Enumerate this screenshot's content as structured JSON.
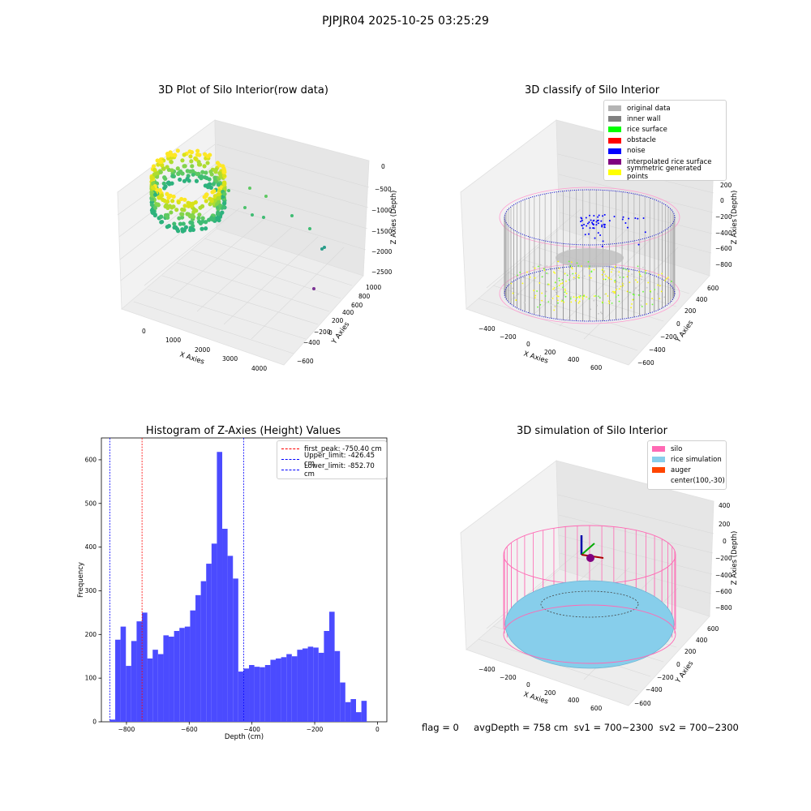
{
  "figure": {
    "suptitle": "PJPJR04 2025-10-25 03:25:29",
    "status_line": "flag = 0     avgDepth = 758 cm  sv1 = 700~2300  sv2 = 700~2300"
  },
  "chart_data": [
    {
      "type": "scatter",
      "title": "3D Plot of Silo Interior(row data)",
      "xlabel": "X Axies",
      "ylabel": "Y Axies",
      "zlabel": "Z Axies (Depth)",
      "x_ticks": [
        "0",
        "1000",
        "2000",
        "3000",
        "4000"
      ],
      "y_ticks": [
        "−600",
        "−400",
        "−200",
        "0",
        "200",
        "400",
        "600",
        "800",
        "1000"
      ],
      "z_ticks": [
        "0",
        "−500",
        "−1000",
        "−1500",
        "−2000",
        "−2500"
      ],
      "colormap": "viridis",
      "points_description_values": {
        "dense_ring": {
          "x_range": [
            -400,
            800
          ],
          "y_range": [
            -600,
            700
          ],
          "z_range": [
            -900,
            -400
          ]
        },
        "scattered_outliers": [
          {
            "x": 1500,
            "y": 200,
            "z": -800
          },
          {
            "x": 2200,
            "y": 100,
            "z": -1100
          },
          {
            "x": 3500,
            "y": 0,
            "z": -1500
          },
          {
            "x": 4000,
            "y": -100,
            "z": -2000
          },
          {
            "x": 3900,
            "y": -300,
            "z": -2600
          }
        ]
      }
    },
    {
      "type": "scatter",
      "title": "3D classify of Silo Interior",
      "xlabel": "X Axies",
      "ylabel": "Y Axies",
      "zlabel": "Z Axies (Depth)",
      "x_ticks": [
        "−400",
        "−200",
        "0",
        "200",
        "400",
        "600"
      ],
      "y_ticks": [
        "−600",
        "−400",
        "−200",
        "0",
        "200",
        "400",
        "600"
      ],
      "z_ticks": [
        "200",
        "0",
        "−200",
        "−400",
        "−600",
        "−800"
      ],
      "legend": [
        {
          "label": "original data",
          "color": "#b4b4b4"
        },
        {
          "label": "inner wall",
          "color": "#808080"
        },
        {
          "label": "rice surface",
          "color": "#00ff00"
        },
        {
          "label": "obstacle",
          "color": "#ff0000"
        },
        {
          "label": "noise",
          "color": "#0000ff"
        },
        {
          "label": "interpolated rice surface",
          "color": "#800080"
        },
        {
          "label": "symmetric generated points",
          "color": "#ffff00"
        }
      ],
      "legend_placement": "upper-right"
    },
    {
      "type": "bar",
      "title": "Histogram of Z-Axies (Height) Values",
      "xlabel": "Depth (cm)",
      "ylabel": "Frequency",
      "xlim": [
        -880,
        30
      ],
      "ylim": [
        0,
        650
      ],
      "x_ticks": [
        -800,
        -600,
        -400,
        -200,
        0
      ],
      "x_tick_labels": [
        "−800",
        "−600",
        "−400",
        "−200",
        "0"
      ],
      "y_ticks": [
        0,
        100,
        200,
        300,
        400,
        500,
        600
      ],
      "y_tick_labels": [
        "0",
        "100",
        "200",
        "300",
        "400",
        "500",
        "600"
      ],
      "bin_start": -853,
      "bin_width": 17.06,
      "values": [
        5,
        188,
        218,
        128,
        185,
        230,
        250,
        145,
        165,
        155,
        198,
        195,
        208,
        215,
        218,
        255,
        290,
        322,
        362,
        408,
        618,
        442,
        380,
        328,
        115,
        122,
        130,
        126,
        125,
        130,
        142,
        145,
        148,
        155,
        150,
        165,
        168,
        172,
        170,
        158,
        208,
        252,
        162,
        90,
        45,
        52,
        22,
        48
      ],
      "bar_color": "#4b4bff",
      "vlines": [
        {
          "label": "first_peak: -750.40 cm",
          "x": -750.4,
          "color": "#ff0000"
        },
        {
          "label": "Upper_limit: -426.45 cm",
          "x": -426.45,
          "color": "#0000ff"
        },
        {
          "label": "Lower_limit: -852.70 cm",
          "x": -852.7,
          "color": "#0000ff"
        }
      ],
      "legend_placement": "upper-right"
    },
    {
      "type": "scatter",
      "title": "3D simulation of Silo Interior",
      "xlabel": "X Axies",
      "ylabel": "Y Axies",
      "zlabel": "Z Axies (Depth)",
      "x_ticks": [
        "−400",
        "−200",
        "0",
        "200",
        "400",
        "600"
      ],
      "y_ticks": [
        "−600",
        "−400",
        "−200",
        "0",
        "200",
        "400",
        "600"
      ],
      "z_ticks": [
        "400",
        "200",
        "0",
        "−200",
        "−400",
        "−600",
        "−800"
      ],
      "legend": [
        {
          "label": "silo",
          "color": "#ff69b4"
        },
        {
          "label": "rice simulation",
          "color": "#87ceeb"
        },
        {
          "label": "auger",
          "color": "#ff4500"
        },
        {
          "label": "center(100,-30)",
          "color": "none"
        }
      ],
      "legend_placement": "upper-right"
    }
  ]
}
